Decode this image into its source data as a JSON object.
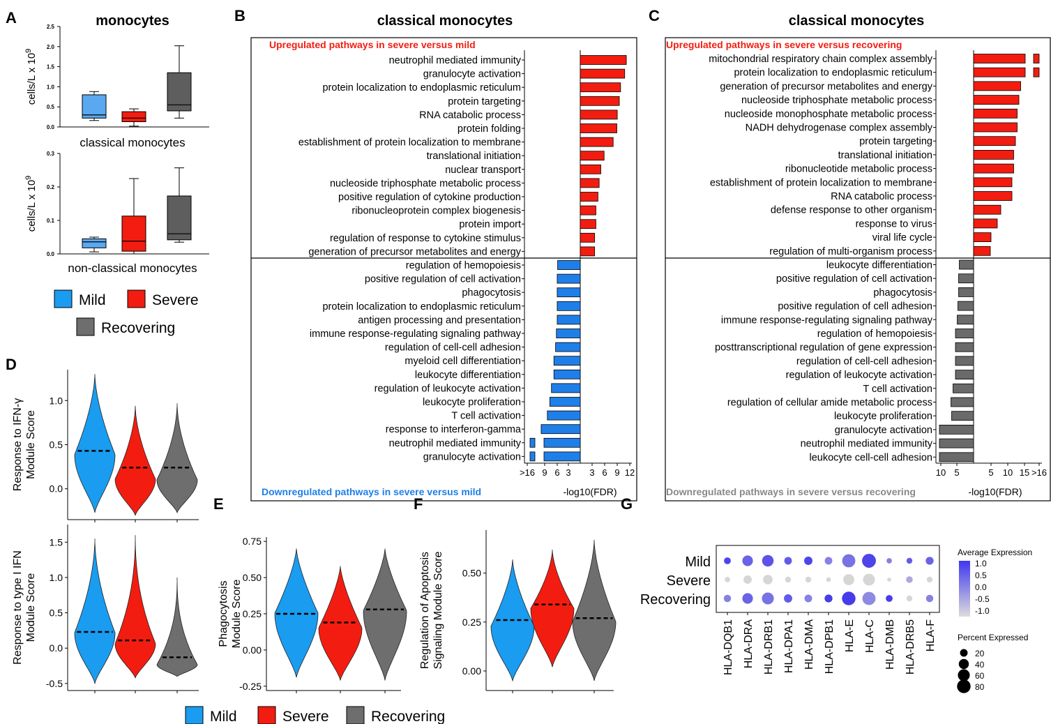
{
  "colors": {
    "mild": "#1a9cf0",
    "severe": "#f21d10",
    "recovering": "#6e6e6e",
    "box_mild": "#5aa8f0",
    "box_recovering": "#5e5e5e",
    "down_mild": "#1f7fe8"
  },
  "legend_main": [
    "Mild",
    "Severe",
    "Recovering"
  ],
  "chart_data": [
    {
      "panel": "A",
      "type": "box",
      "title": "monocytes",
      "subtitle": "classical monocytes",
      "ylabel": "cells/L x 10",
      "ylabel_sup": "9",
      "ylim": [
        0,
        2.5
      ],
      "yticks": [
        "0.0",
        "0.5",
        "1.0",
        "1.5",
        "2.0",
        "2.5"
      ],
      "boxes": [
        {
          "group": "Mild",
          "min": 0.16,
          "q1": 0.22,
          "median": 0.3,
          "q3": 0.8,
          "max": 0.88
        },
        {
          "group": "Severe",
          "min": 0.02,
          "q1": 0.13,
          "median": 0.22,
          "q3": 0.38,
          "max": 0.45
        },
        {
          "group": "Recovering",
          "min": 0.22,
          "q1": 0.4,
          "median": 0.55,
          "q3": 1.35,
          "max": 2.02
        }
      ]
    },
    {
      "panel": "A2",
      "type": "box",
      "subtitle": "non-classical monocytes",
      "ylabel": "cells/L x 10",
      "ylabel_sup": "9",
      "ylim": [
        0,
        0.3
      ],
      "yticks": [
        "0.0",
        "0.1",
        "0.2",
        "0.3"
      ],
      "boxes": [
        {
          "group": "Mild",
          "min": 0.006,
          "q1": 0.018,
          "median": 0.036,
          "q3": 0.045,
          "max": 0.05
        },
        {
          "group": "Severe",
          "min": 0.0,
          "q1": 0.008,
          "median": 0.038,
          "q3": 0.113,
          "max": 0.225
        },
        {
          "group": "Recovering",
          "min": 0.035,
          "q1": 0.042,
          "median": 0.06,
          "q3": 0.173,
          "max": 0.257
        }
      ]
    },
    {
      "panel": "B",
      "type": "bar",
      "title": "classical monocytes",
      "up_label": "Upregulated pathways in severe versus mild",
      "down_label": "Downregulated pathways in severe versus mild",
      "xlabel": "-log10(FDR)",
      "up": [
        {
          "term": "neutrophil mediated immunity",
          "value": 11.2
        },
        {
          "term": "granulocyte activation",
          "value": 10.8
        },
        {
          "term": "protein localization to endoplasmic reticulum",
          "value": 9.8
        },
        {
          "term": "protein targeting",
          "value": 9.5
        },
        {
          "term": "RNA catabolic process",
          "value": 9.0
        },
        {
          "term": "protein folding",
          "value": 8.9
        },
        {
          "term": "establishment of protein localization to membrane",
          "value": 8.0
        },
        {
          "term": "translational initiation",
          "value": 5.8
        },
        {
          "term": "nuclear transport",
          "value": 5.0
        },
        {
          "term": "nucleoside triphosphate metabolic process",
          "value": 4.6
        },
        {
          "term": "positive regulation of cytokine production",
          "value": 4.3
        },
        {
          "term": "ribonucleoprotein complex biogenesis",
          "value": 3.8
        },
        {
          "term": "protein import",
          "value": 3.8
        },
        {
          "term": "regulation of response to cytokine stimulus",
          "value": 3.5
        },
        {
          "term": "generation of precursor metabolites and energy",
          "value": 3.5
        }
      ],
      "down": [
        {
          "term": "regulation of hemopoiesis",
          "value": 5.5
        },
        {
          "term": "positive regulation of cell activation",
          "value": 5.6
        },
        {
          "term": "phagocytosis",
          "value": 5.6
        },
        {
          "term": "protein localization to endoplasmic reticulum",
          "value": 5.6
        },
        {
          "term": "antigen processing and presentation",
          "value": 5.6
        },
        {
          "term": "immune response-regulating signaling pathway",
          "value": 5.8
        },
        {
          "term": "regulation of cell-cell adhesion",
          "value": 6.0
        },
        {
          "term": "myeloid cell differentiation",
          "value": 6.4
        },
        {
          "term": "leukocyte differentiation",
          "value": 6.4
        },
        {
          "term": "regulation of leukocyte activation",
          "value": 7.0
        },
        {
          "term": "leukocyte proliferation",
          "value": 7.4
        },
        {
          "term": "T cell activation",
          "value": 8.0
        },
        {
          "term": "response to interferon-gamma",
          "value": 9.5
        },
        {
          "term": "neutrophil mediated immunity",
          "value": 16.5
        },
        {
          "term": "granulocyte activation",
          "value": 16.5
        }
      ],
      "xticks_left": [
        ">16",
        "9",
        "6",
        "3"
      ],
      "xticks_right": [
        "3",
        "6",
        "9",
        "12"
      ]
    },
    {
      "panel": "C",
      "type": "bar",
      "title": "classical monocytes",
      "up_label": "Upregulated pathways in severe versus recovering",
      "down_label": "Downregulated pathways in severe versus recovering",
      "xlabel": "-log10(FDR)",
      "up": [
        {
          "term": "mitochondrial respiratory chain complex assembly",
          "value": 17
        },
        {
          "term": "protein localization to endoplasmic reticulum",
          "value": 17
        },
        {
          "term": "generation of precursor metabolites and energy",
          "value": 13.5
        },
        {
          "term": "nucleoside triphosphate metabolic process",
          "value": 13.0
        },
        {
          "term": "nucleoside monophosphate metabolic process",
          "value": 12.5
        },
        {
          "term": "NADH dehydrogenase complex assembly",
          "value": 12.5
        },
        {
          "term": "protein targeting",
          "value": 12.0
        },
        {
          "term": "translational initiation",
          "value": 11.5
        },
        {
          "term": "ribonucleotide metabolic process",
          "value": 11.5
        },
        {
          "term": "establishment of protein localization to membrane",
          "value": 11.0
        },
        {
          "term": "RNA catabolic process",
          "value": 11.0
        },
        {
          "term": "defense response to other organism",
          "value": 7.8
        },
        {
          "term": "response to virus",
          "value": 6.8
        },
        {
          "term": "viral life cycle",
          "value": 5.0
        },
        {
          "term": "regulation of multi-organism process",
          "value": 4.8
        }
      ],
      "down": [
        {
          "term": "leukocyte differentiation",
          "value": 4.1
        },
        {
          "term": "positive regulation of cell activation",
          "value": 4.3
        },
        {
          "term": "phagocytosis",
          "value": 4.3
        },
        {
          "term": "positive regulation of cell adhesion",
          "value": 4.5
        },
        {
          "term": "immune response-regulating signaling pathway",
          "value": 4.7
        },
        {
          "term": "regulation of hemopoiesis",
          "value": 5.2
        },
        {
          "term": "posttranscriptional regulation of gene expression",
          "value": 5.2
        },
        {
          "term": "regulation of cell-cell adhesion",
          "value": 5.2
        },
        {
          "term": "regulation of leukocyte activation",
          "value": 5.2
        },
        {
          "term": "T cell activation",
          "value": 5.9
        },
        {
          "term": "regulation of cellular amide metabolic process",
          "value": 6.5
        },
        {
          "term": "leukocyte proliferation",
          "value": 6.3
        },
        {
          "term": "granulocyte activation",
          "value": 9.8
        },
        {
          "term": "neutrophil mediated immunity",
          "value": 9.8
        },
        {
          "term": "leukocyte cell-cell adhesion",
          "value": 9.8
        }
      ],
      "xticks_left": [
        "10",
        "5"
      ],
      "xticks_right": [
        "5",
        "10",
        "15",
        ">16"
      ]
    },
    {
      "panel": "D",
      "type": "violin",
      "ylabel": [
        "Response to IFN-γ",
        "Module Score"
      ],
      "yticks": [
        "0.0",
        "0.5",
        "1.0"
      ],
      "ylim": [
        -0.35,
        1.35
      ],
      "medians": [
        0.43,
        0.24,
        0.24
      ],
      "ranges": [
        [
          -0.27,
          1.3
        ],
        [
          -0.3,
          0.94
        ],
        [
          -0.27,
          0.97
        ]
      ]
    },
    {
      "panel": "D2",
      "type": "violin",
      "ylabel": [
        "Response to type I IFN",
        "Module Score"
      ],
      "yticks": [
        "-0.5",
        "0.0",
        "0.5",
        "1.0",
        "1.5"
      ],
      "ylim": [
        -0.6,
        1.75
      ],
      "medians": [
        0.23,
        0.11,
        -0.13
      ],
      "ranges": [
        [
          -0.5,
          1.55
        ],
        [
          -0.42,
          1.6
        ],
        [
          -0.4,
          1.0
        ]
      ]
    },
    {
      "panel": "E",
      "type": "violin",
      "ylabel": [
        "Phagocytosis",
        "Module Score"
      ],
      "yticks": [
        "-0.25",
        "0.00",
        "0.25",
        "0.50",
        "0.75"
      ],
      "ylim": [
        -0.28,
        0.78
      ],
      "medians": [
        0.25,
        0.19,
        0.28
      ],
      "ranges": [
        [
          -0.19,
          0.7
        ],
        [
          -0.21,
          0.58
        ],
        [
          -0.21,
          0.7
        ]
      ]
    },
    {
      "panel": "F",
      "type": "violin",
      "ylabel": [
        "Regulation of Apoptosis",
        "Signaling Module Score"
      ],
      "yticks": [
        "0.00",
        "0.25",
        "0.50"
      ],
      "ylim": [
        -0.1,
        0.72
      ],
      "medians": [
        0.26,
        0.34,
        0.27
      ],
      "ranges": [
        [
          -0.05,
          0.57
        ],
        [
          0.02,
          0.62
        ],
        [
          -0.05,
          0.67
        ]
      ]
    },
    {
      "panel": "G",
      "type": "dotplot",
      "rows": [
        "Mild",
        "Severe",
        "Recovering"
      ],
      "genes": [
        "HLA-DQB1",
        "HLA-DRA",
        "HLA-DRB1",
        "HLA-DPA1",
        "HLA-DMA",
        "HLA-DPB1",
        "HLA-E",
        "HLA-C",
        "HLA-DMB",
        "HLA-DRB5",
        "HLA-F"
      ],
      "expr": [
        [
          0.9,
          0.5,
          0.7,
          0.6,
          0.9,
          0.1,
          0.3,
          0.9,
          0.1,
          0.6,
          0.5
        ],
        [
          -1.0,
          -1.0,
          -1.0,
          -1.0,
          -1.0,
          -1.0,
          -1.0,
          -1.0,
          -1.0,
          -0.4,
          -1.0
        ],
        [
          0.1,
          0.5,
          0.3,
          0.6,
          0.1,
          1.0,
          1.0,
          0.0,
          1.0,
          -1.0,
          0.1
        ]
      ],
      "pct": [
        [
          15,
          45,
          55,
          20,
          25,
          20,
          75,
          85,
          8,
          10,
          22
        ],
        [
          8,
          25,
          35,
          10,
          10,
          5,
          50,
          60,
          3,
          14,
          10
        ],
        [
          18,
          45,
          60,
          25,
          20,
          22,
          80,
          75,
          15,
          10,
          18
        ]
      ],
      "legend_expr_title": "Average Expression",
      "legend_expr_ticks": [
        "1.0",
        "0.5",
        "0.0",
        "-0.5",
        "-1.0"
      ],
      "legend_pct_title": "Percent Expressed",
      "legend_pct_ticks": [
        "20",
        "40",
        "60",
        "80"
      ]
    }
  ],
  "panel_letters": {
    "A": "A",
    "B": "B",
    "C": "C",
    "D": "D",
    "E": "E",
    "F": "F",
    "G": "G"
  }
}
